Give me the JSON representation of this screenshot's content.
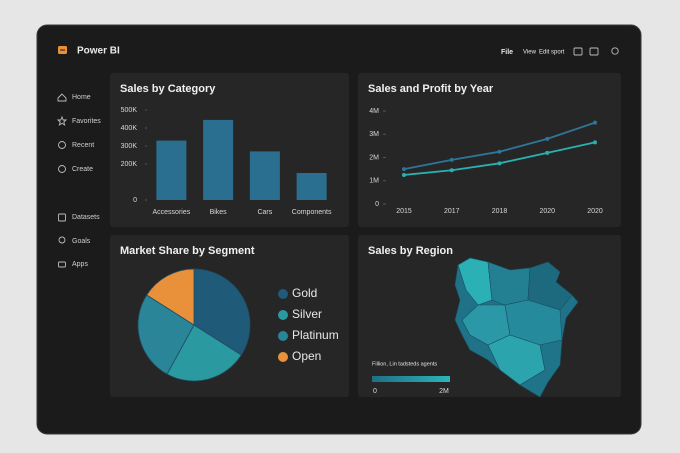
{
  "header": {
    "app_name": "Power BI",
    "menu": [
      "File",
      "View",
      "Edit sport"
    ]
  },
  "sidebar": [
    "Home",
    "Favorites",
    "Recent",
    "Create",
    "Datasets",
    "Goals",
    "Apps"
  ],
  "chart_data": [
    {
      "type": "bar",
      "title": "Sales by Category",
      "categories": [
        "Accessories",
        "Bikes",
        "Cars",
        "Components"
      ],
      "values": [
        330000,
        445000,
        270000,
        150000
      ],
      "color": "#2a6f8f",
      "ylim": [
        0,
        500000
      ],
      "yticks": [
        0,
        {
          "value": 200000,
          "label": "200K"
        },
        {
          "value": 300000,
          "label": "300K"
        },
        {
          "value": 400000,
          "label": "400K"
        },
        {
          "value": 500000,
          "label": "500K"
        }
      ]
    },
    {
      "type": "line",
      "title": "Sales and Profit by Year",
      "categories": [
        "2015",
        "2017",
        "2018",
        "2020",
        "2020"
      ],
      "series": [
        {
          "color": "#2f7597",
          "values": [
            1500000,
            1900000,
            2250000,
            2800000,
            3500000
          ]
        },
        {
          "color": "#2bb0b0",
          "values": [
            1250000,
            1450000,
            1750000,
            2200000,
            2650000
          ]
        }
      ],
      "ylim": [
        0,
        4000000
      ],
      "yticks": [
        0,
        {
          "value": 1000000,
          "label": "1M"
        },
        {
          "value": 2000000,
          "label": "2M"
        },
        {
          "value": 3000000,
          "label": "3M"
        },
        {
          "value": 4000000,
          "label": "4M"
        }
      ]
    },
    {
      "type": "pie",
      "title": "Market Share by Segment",
      "categories": [
        "Gold",
        "Silver",
        "Platinum",
        "Open"
      ],
      "values": [
        34,
        24,
        26,
        16
      ],
      "colors": [
        "#1f5a78",
        "#2a9aa0",
        "#2a8599",
        "#e8913a"
      ]
    },
    {
      "type": "map",
      "title": "Sales by Region",
      "legend_title": "Fillion, Lin tadsteds agents",
      "scale_ticks": [
        0,
        {
          "value": 2000000,
          "label": "2M"
        }
      ],
      "scale_colors": [
        "#1e6f85",
        "#2bb5bc"
      ]
    }
  ]
}
